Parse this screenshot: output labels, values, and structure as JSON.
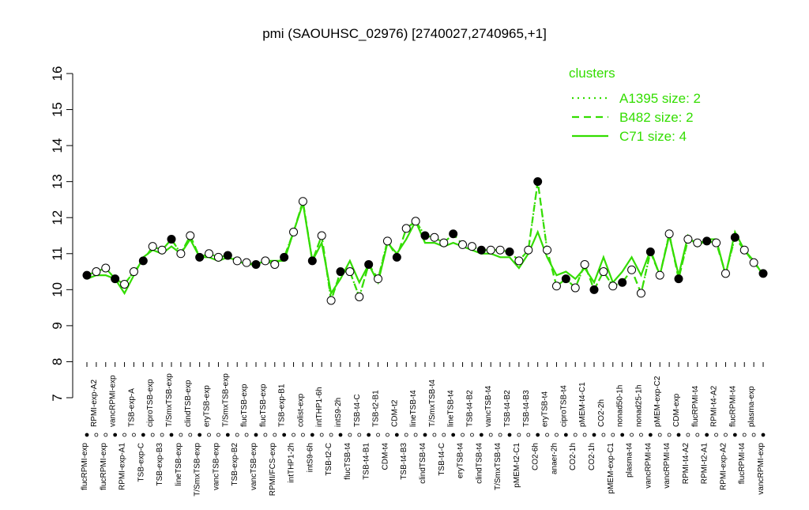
{
  "chart_data": {
    "type": "line",
    "title": "pmi (SAOUHSC_02976) [2740027,2740965,+1]",
    "ylim": [
      7,
      16
    ],
    "yticks": [
      7,
      8,
      9,
      10,
      11,
      12,
      13,
      14,
      15,
      16
    ],
    "legend_title": "clusters",
    "legend_position": "topright",
    "categories": [
      "flucRPMI-exp",
      "RPMI-exp-A2",
      "flucRPMI-exp",
      "vancRPMI-exp",
      "RPMI-exp-A1",
      "TSB-exp-A",
      "TSB-exp-C",
      "ciproTSB-exp",
      "TSB-exp-B3",
      "T/SmxTSB-exp",
      "lineTSB-exp",
      "clindTSB-exp",
      "T/SmxTSB-exp",
      "eryTSB-exp",
      "vancTSB-exp",
      "T/SmxTSB-exp",
      "TSB-exp-B2",
      "flucTSB-exp",
      "vancTSB-exp",
      "flucTSB-exp",
      "RPMI/FCS-exp",
      "TSB-exp-B1",
      "intTHP1-2h",
      "colist-exp",
      "intS9-6h",
      "intTHP1-6h",
      "TSB-t2-C",
      "intS9-2h",
      "flucTSB-t4",
      "TSB-t4-C",
      "TSB-t4-B1",
      "TSB-t2-B1",
      "CDM-t4",
      "CDM-t2",
      "TSB-t4-B3",
      "lineTSB-t4",
      "clindTSB-t4",
      "T/SmxTSB-t4",
      "TSB-t4-C",
      "lineTSB-t4",
      "eryTSB-t4",
      "TSB-t4-B2",
      "clindTSB-t4",
      "vancTSB-t4",
      "T/SmxTSB-t4",
      "TSB-t4-B2",
      "pMEM-t2-C1",
      "TSB-t4-B3",
      "CO2-6h",
      "eryTSB-t4",
      "anaer-2h",
      "ciproTSB-t4",
      "CO2-1h",
      "pMEM-t4-C1",
      "CO2-1h",
      "CO2-2h",
      "pMEM-exp-C1",
      "nonad50-1h",
      "plasma-t4",
      "nonad25-1h",
      "vancRPMI-t4",
      "pMEM-exp-C2",
      "vancRPMI-t4",
      "CDM-exp",
      "RPMI-t4-A2",
      "flucRPMI-t4",
      "RPMI-t2-A1",
      "RPMI-t4-A2",
      "RPMI-exp-A2",
      "flucRPMI-t4",
      "flucRPMI-t4",
      "plasma-exp",
      "vancRPMI-exp"
    ],
    "values": [
      10.4,
      10.5,
      10.6,
      10.3,
      10.15,
      10.5,
      10.8,
      11.2,
      11.1,
      11.4,
      11.0,
      11.5,
      10.9,
      11.0,
      10.9,
      10.95,
      10.8,
      10.75,
      10.7,
      10.8,
      10.7,
      10.9,
      11.6,
      12.45,
      10.8,
      11.5,
      9.7,
      10.5,
      10.5,
      9.8,
      10.7,
      10.3,
      11.35,
      10.9,
      11.7,
      11.9,
      11.5,
      11.45,
      11.3,
      11.55,
      11.25,
      11.2,
      11.1,
      11.1,
      11.1,
      11.05,
      10.8,
      11.1,
      13.0,
      11.1,
      10.1,
      10.3,
      10.05,
      10.7,
      10.0,
      10.5,
      10.1,
      10.2,
      10.55,
      9.9,
      11.05,
      10.4,
      11.55,
      10.3,
      11.4,
      11.3,
      11.35,
      11.3,
      10.45,
      11.45,
      11.1,
      10.75,
      10.45
    ],
    "series": [
      {
        "name": "A1395 size: 2",
        "color": "#33dd00",
        "dash": "dotted",
        "values": [
          10.4,
          10.5,
          10.6,
          10.3,
          10.15,
          10.5,
          10.8,
          11.2,
          11.1,
          11.4,
          11.0,
          11.5,
          10.9,
          11.0,
          10.9,
          10.95,
          10.8,
          10.75,
          10.7,
          10.8,
          10.7,
          10.9,
          11.6,
          12.45,
          10.8,
          11.5,
          9.7,
          10.5,
          10.5,
          9.8,
          10.7,
          10.3,
          11.35,
          10.9,
          11.7,
          11.9,
          11.5,
          11.45,
          11.3,
          11.55,
          11.25,
          11.2,
          11.1,
          11.1,
          11.1,
          11.05,
          10.8,
          11.1,
          13.0,
          11.1,
          10.1,
          10.3,
          10.05,
          10.7,
          10.0,
          10.5,
          10.1,
          10.2,
          10.55,
          9.9,
          11.05,
          10.4,
          11.55,
          10.3,
          11.4,
          11.3,
          11.35,
          11.3,
          10.45,
          11.45,
          11.1,
          10.75,
          10.45
        ]
      },
      {
        "name": "B482 size: 2",
        "color": "#33dd00",
        "dash": "dashed",
        "values": [
          10.4,
          10.5,
          10.6,
          10.3,
          10.15,
          10.5,
          10.8,
          11.2,
          11.1,
          11.4,
          11.0,
          11.5,
          10.9,
          11.0,
          10.9,
          10.95,
          10.8,
          10.75,
          10.7,
          10.8,
          10.7,
          10.9,
          11.6,
          12.45,
          10.8,
          11.5,
          9.7,
          10.5,
          10.5,
          9.8,
          10.7,
          10.3,
          11.35,
          10.9,
          11.7,
          11.9,
          11.5,
          11.45,
          11.3,
          11.55,
          11.25,
          11.2,
          11.1,
          11.1,
          11.1,
          11.05,
          10.8,
          11.1,
          13.0,
          11.1,
          10.1,
          10.3,
          10.05,
          10.7,
          10.0,
          10.5,
          10.1,
          10.2,
          10.55,
          9.9,
          11.05,
          10.4,
          11.55,
          10.3,
          11.4,
          11.3,
          11.35,
          11.3,
          10.45,
          11.45,
          11.1,
          10.75,
          10.45
        ]
      },
      {
        "name": "C71 size: 4",
        "color": "#33dd00",
        "dash": "solid",
        "values": [
          10.3,
          10.4,
          10.4,
          10.3,
          9.9,
          10.4,
          10.9,
          11.1,
          11.0,
          11.2,
          11.0,
          11.4,
          10.9,
          10.9,
          10.8,
          10.9,
          10.8,
          10.7,
          10.7,
          10.8,
          10.8,
          10.8,
          11.6,
          12.4,
          10.8,
          11.3,
          9.9,
          10.3,
          10.8,
          10.2,
          10.7,
          10.2,
          11.3,
          11.0,
          11.4,
          11.9,
          11.3,
          11.3,
          11.2,
          11.3,
          11.2,
          11.1,
          11.0,
          11.0,
          10.9,
          10.9,
          10.6,
          11.0,
          11.6,
          10.9,
          10.4,
          10.5,
          10.3,
          10.6,
          10.2,
          10.9,
          10.2,
          10.5,
          10.9,
          10.4,
          11.1,
          10.4,
          11.5,
          10.4,
          11.5,
          11.2,
          11.4,
          11.4,
          10.4,
          11.6,
          11.1,
          10.8,
          10.4
        ]
      }
    ]
  }
}
